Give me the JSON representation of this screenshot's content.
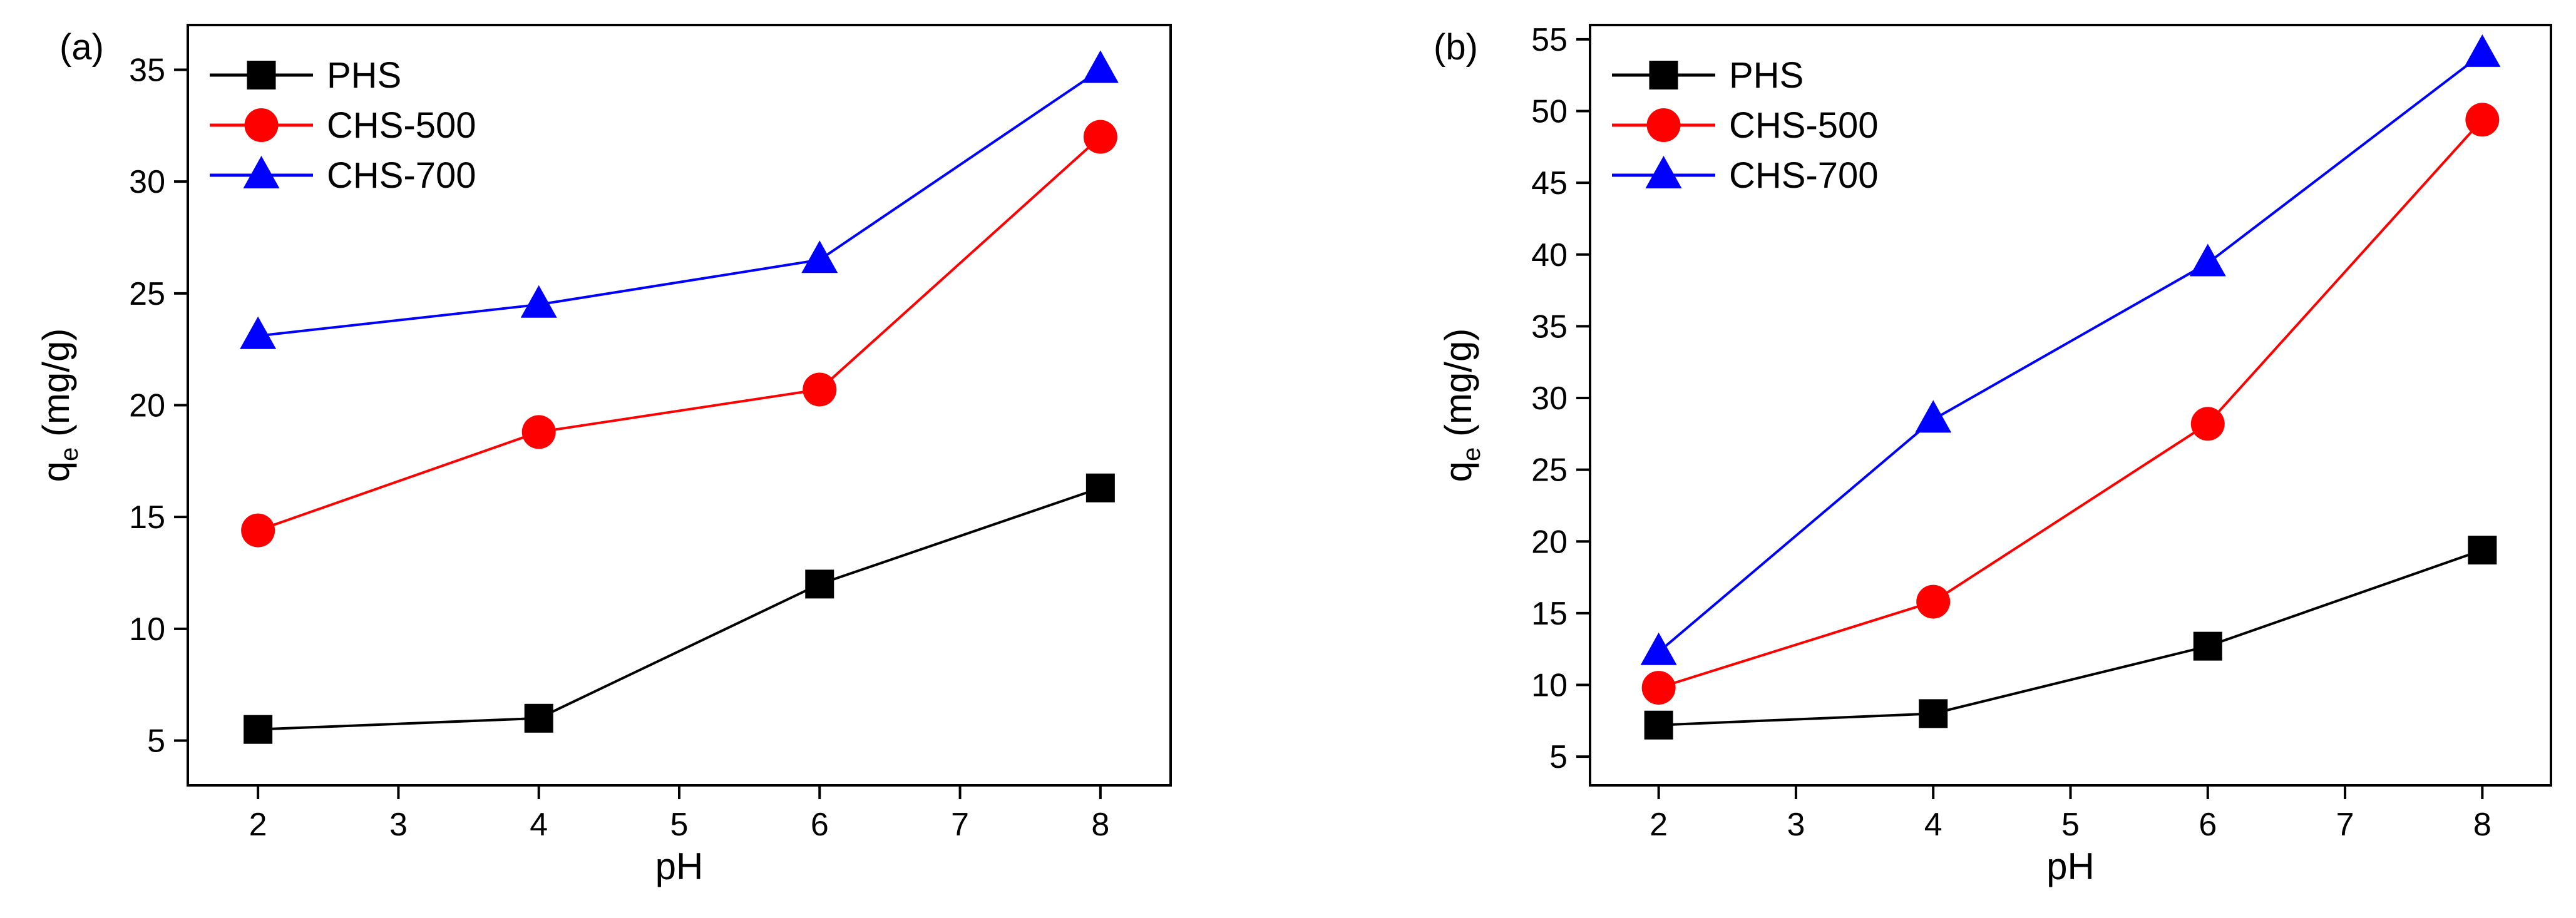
{
  "figure": {
    "panel_labels": [
      "(a)",
      "(b)"
    ],
    "colors": {
      "PHS": "#000000",
      "CHS-500": "#ff0000",
      "CHS-700": "#0000ff"
    },
    "markers": {
      "PHS": "square",
      "CHS-500": "circle",
      "CHS-700": "triangle"
    }
  },
  "chart_data": [
    {
      "type": "line",
      "panel": "(a)",
      "title": "",
      "xlabel": "pH",
      "ylabel": "q_e (mg/g)",
      "ylabel_main": "q",
      "ylabel_sub": "e",
      "ylabel_rest": " (mg/g)",
      "xlim": [
        1.5,
        8.5
      ],
      "ylim": [
        3,
        37
      ],
      "xticks": [
        2,
        3,
        4,
        5,
        6,
        7,
        8
      ],
      "yticks": [
        5,
        10,
        15,
        20,
        25,
        30,
        35
      ],
      "x": [
        2,
        4,
        6,
        8
      ],
      "legend_position": "top-left",
      "series": [
        {
          "name": "PHS",
          "values": [
            5.5,
            6.0,
            12.0,
            16.3
          ]
        },
        {
          "name": "CHS-500",
          "values": [
            14.4,
            18.8,
            20.7,
            32.0
          ]
        },
        {
          "name": "CHS-700",
          "values": [
            23.1,
            24.5,
            26.5,
            35.0
          ]
        }
      ]
    },
    {
      "type": "line",
      "panel": "(b)",
      "title": "",
      "xlabel": "pH",
      "ylabel": "q_e (mg/g)",
      "ylabel_main": "q",
      "ylabel_sub": "e",
      "ylabel_rest": " (mg/g)",
      "xlim": [
        1.5,
        8.5
      ],
      "ylim": [
        3,
        56
      ],
      "xticks": [
        2,
        3,
        4,
        5,
        6,
        7,
        8
      ],
      "yticks": [
        5,
        10,
        15,
        20,
        25,
        30,
        35,
        40,
        45,
        50,
        55
      ],
      "x": [
        2,
        4,
        6,
        8
      ],
      "legend_position": "top-left",
      "series": [
        {
          "name": "PHS",
          "values": [
            7.2,
            8.0,
            12.7,
            19.4
          ]
        },
        {
          "name": "CHS-500",
          "values": [
            9.8,
            15.8,
            28.2,
            49.4
          ]
        },
        {
          "name": "CHS-700",
          "values": [
            12.3,
            28.5,
            39.4,
            54.0
          ]
        }
      ]
    }
  ]
}
